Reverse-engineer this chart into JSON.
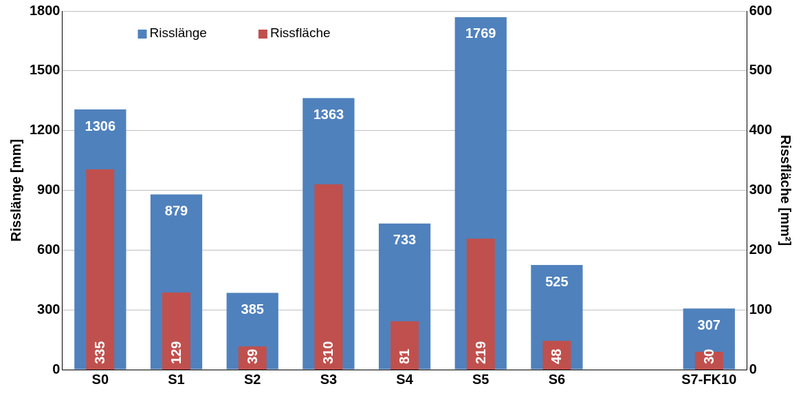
{
  "chart_data": {
    "type": "bar",
    "categories": [
      "S0",
      "S1",
      "S2",
      "S3",
      "S4",
      "S5",
      "S6",
      null,
      "S7-FK10"
    ],
    "series": [
      {
        "name": "Risslänge",
        "color": "#4f81bd",
        "values": [
          1306,
          879,
          385,
          1363,
          733,
          1769,
          525,
          null,
          307
        ]
      },
      {
        "name": "Rissfläche",
        "color": "#c0504d",
        "axis": "y2",
        "values": [
          335,
          129,
          39,
          310,
          81,
          219,
          48,
          null,
          30
        ]
      }
    ],
    "ylabel": "Risslänge [mm]",
    "y2label": "Rissfläche [mm²]",
    "ylim": [
      0,
      1800
    ],
    "yticks": [
      0,
      300,
      600,
      900,
      1200,
      1500,
      1800
    ],
    "y2lim": [
      0,
      600
    ],
    "y2ticks": [
      0,
      100,
      200,
      300,
      400,
      500,
      600
    ],
    "grid": "y",
    "legend": "top left",
    "data_labels": true
  }
}
